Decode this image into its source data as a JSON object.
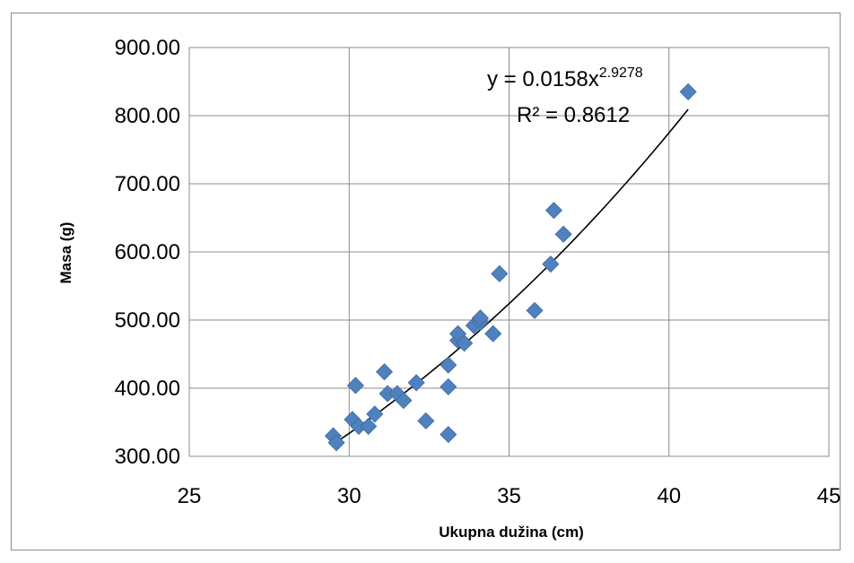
{
  "chart_data": {
    "type": "scatter",
    "xlabel": "Ukupna dužina (cm)",
    "ylabel": "Masa (g)",
    "xlim": [
      25,
      45
    ],
    "ylim": [
      300,
      900
    ],
    "x_ticks": [
      "25",
      "30",
      "35",
      "40",
      "45"
    ],
    "y_ticks": [
      "300.00",
      "400.00",
      "500.00",
      "600.00",
      "700.00",
      "800.00",
      "900.00"
    ],
    "grid": true,
    "marker": "diamond",
    "marker_color": "#4f81bd",
    "series": [
      {
        "points": [
          {
            "x": 29.5,
            "y": 330
          },
          {
            "x": 29.6,
            "y": 320
          },
          {
            "x": 30.1,
            "y": 354
          },
          {
            "x": 30.2,
            "y": 404
          },
          {
            "x": 30.3,
            "y": 344
          },
          {
            "x": 30.6,
            "y": 344
          },
          {
            "x": 30.8,
            "y": 362
          },
          {
            "x": 31.1,
            "y": 424
          },
          {
            "x": 31.2,
            "y": 392
          },
          {
            "x": 31.5,
            "y": 392
          },
          {
            "x": 31.7,
            "y": 382
          },
          {
            "x": 32.1,
            "y": 408
          },
          {
            "x": 32.4,
            "y": 352
          },
          {
            "x": 33.1,
            "y": 332
          },
          {
            "x": 33.1,
            "y": 402
          },
          {
            "x": 33.1,
            "y": 434
          },
          {
            "x": 33.4,
            "y": 470
          },
          {
            "x": 33.4,
            "y": 480
          },
          {
            "x": 33.6,
            "y": 466
          },
          {
            "x": 33.9,
            "y": 492
          },
          {
            "x": 34.1,
            "y": 497
          },
          {
            "x": 34.1,
            "y": 503
          },
          {
            "x": 34.5,
            "y": 480
          },
          {
            "x": 34.7,
            "y": 568
          },
          {
            "x": 35.8,
            "y": 514
          },
          {
            "x": 36.3,
            "y": 582
          },
          {
            "x": 36.4,
            "y": 661
          },
          {
            "x": 36.7,
            "y": 626
          },
          {
            "x": 40.6,
            "y": 835
          }
        ]
      }
    ],
    "trendline": {
      "type": "power",
      "a": 0.0158,
      "b": 2.9278,
      "x_range": [
        29.6,
        40.6
      ],
      "color": "#000000"
    },
    "annotations": {
      "equation_base": "y = 0.0158x",
      "equation_exponent": "2.9278",
      "r_squared": "R² = 0.8612"
    }
  }
}
